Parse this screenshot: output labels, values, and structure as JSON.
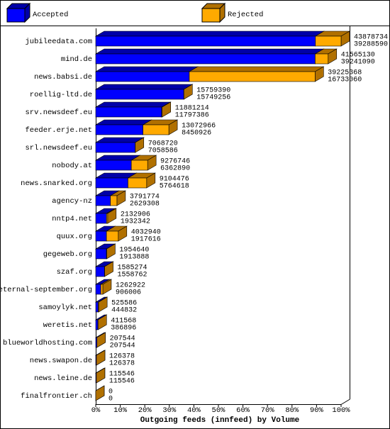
{
  "chart_data": {
    "type": "bar3d",
    "x_label": "Outgoing feeds (innfeed) by Volume",
    "categories": [
      "jubileedata.com",
      "mind.de",
      "news.babsi.de",
      "roellig-ltd.de",
      "srv.newsdeef.eu",
      "feeder.erje.net",
      "srl.newsdeef.eu",
      "nobody.at",
      "news.snarked.org",
      "agency-nz",
      "nntp4.net",
      "quux.org",
      "gegeweb.org",
      "szaf.org",
      "eternal-september.org",
      "samoylyk.net",
      "weretis.net",
      "blueworldhosting.com",
      "news.swapon.de",
      "news.leine.de",
      "finalfrontier.ch"
    ],
    "totals": [
      43878734,
      41565130,
      39225368,
      15759390,
      11881214,
      13072966,
      7068720,
      9276746,
      9104476,
      3791774,
      2132906,
      4032940,
      1954640,
      1585274,
      1262922,
      525586,
      411568,
      207544,
      126378,
      115546,
      0
    ],
    "series": [
      {
        "name": "Accepted",
        "color": "#0000ff",
        "shade": "#0000a8",
        "values": [
          39288590,
          39241090,
          16733060,
          15749256,
          11797386,
          8450926,
          7058586,
          6362890,
          5764618,
          2629308,
          1932342,
          1917616,
          1913888,
          1558762,
          906006,
          444832,
          386896,
          207544,
          126378,
          115546,
          0
        ]
      },
      {
        "name": "Rejected",
        "color": "#ffaa00",
        "shade": "#b07000"
      }
    ],
    "xlim": [
      0,
      43878734
    ],
    "xticks": [
      {
        "value": 0,
        "label": "0%"
      },
      {
        "value": 4387873.4,
        "label": "10%"
      },
      {
        "value": 8775746.8,
        "label": "20%"
      },
      {
        "value": 13163620.2,
        "label": "30%"
      },
      {
        "value": 17551493.6,
        "label": "40%"
      },
      {
        "value": 21939367,
        "label": "50%"
      },
      {
        "value": 26327240.4,
        "label": "60%"
      },
      {
        "value": 30715113.8,
        "label": "70%"
      },
      {
        "value": 35102987.2,
        "label": "80%"
      },
      {
        "value": 39490860.6,
        "label": "90%"
      },
      {
        "value": 43878734,
        "label": "100%"
      }
    ]
  }
}
